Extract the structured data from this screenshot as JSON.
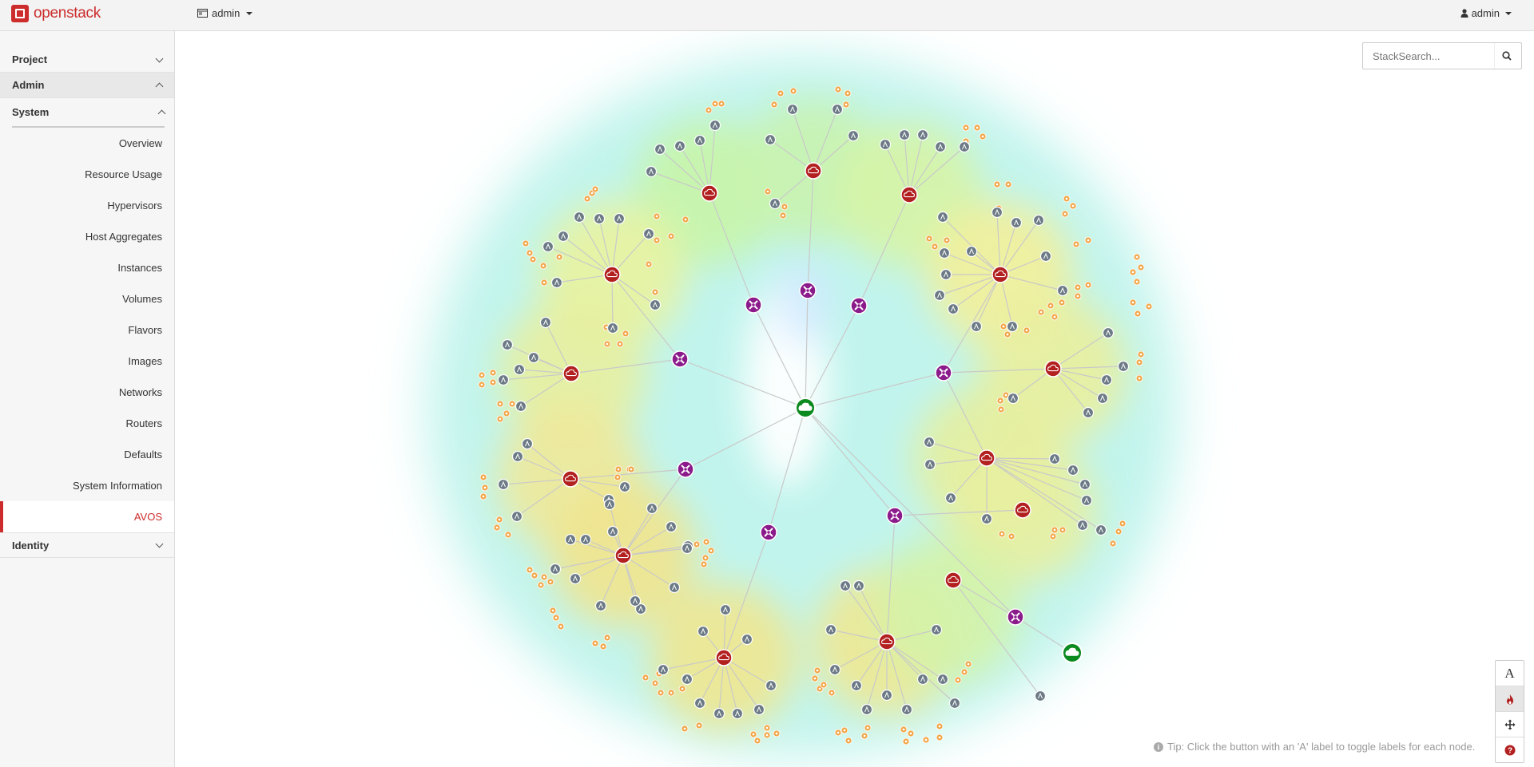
{
  "header": {
    "brand": "openstack",
    "project_selector": "admin",
    "user_menu": "admin"
  },
  "sidebar": {
    "sections": [
      {
        "label": "Project",
        "expanded": false
      },
      {
        "label": "Admin",
        "expanded": true
      },
      {
        "label": "Identity",
        "expanded": false
      }
    ],
    "subsection": "System",
    "items": [
      {
        "label": "Overview"
      },
      {
        "label": "Resource Usage"
      },
      {
        "label": "Hypervisors"
      },
      {
        "label": "Host Aggregates"
      },
      {
        "label": "Instances"
      },
      {
        "label": "Volumes"
      },
      {
        "label": "Flavors"
      },
      {
        "label": "Images"
      },
      {
        "label": "Networks"
      },
      {
        "label": "Routers"
      },
      {
        "label": "Defaults"
      },
      {
        "label": "System Information"
      },
      {
        "label": "AVOS",
        "selected": true
      }
    ]
  },
  "search": {
    "placeholder": "StackSearch..."
  },
  "tools": [
    {
      "name": "toggle-labels",
      "glyph": "A"
    },
    {
      "name": "heatmap",
      "glyph": "flame-icon",
      "active": true
    },
    {
      "name": "pan",
      "glyph": "move-icon"
    },
    {
      "name": "help",
      "glyph": "question-icon"
    }
  ],
  "tip": "Tip: Click the button with an 'A' label to toggle labels for each node.",
  "colors": {
    "accent": "#cc2c2c",
    "cloud_node": "#b32020",
    "router_node": "#8b1a8b",
    "network_node": "#0b8a1f",
    "instance_node": "#6c7a86",
    "alarm_node": "#f2a546"
  },
  "topology": {
    "center_network": "center",
    "router_count": 10,
    "tenant_cloud_count": 12,
    "external_network_count": 1
  }
}
